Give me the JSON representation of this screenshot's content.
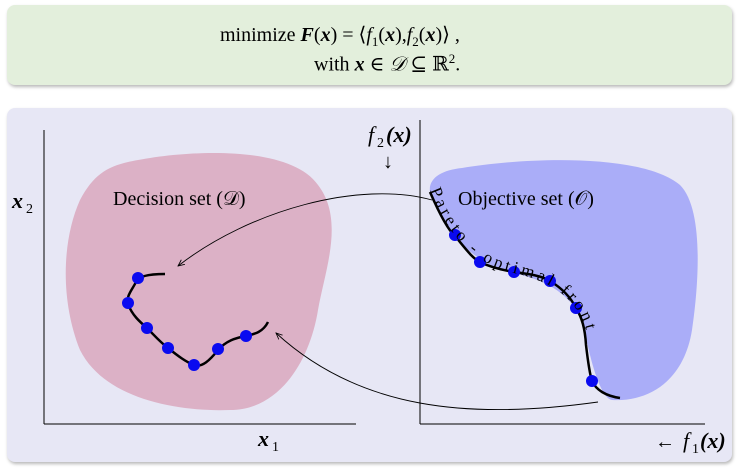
{
  "equation": {
    "line1": {
      "pre": "minimize ",
      "F": "F",
      "open": "(",
      "x": "x",
      "close": ")",
      "eq": " = ⟨",
      "f1": "f",
      "sub1": "1",
      "x1": "x",
      "mid": "),",
      "f2": "f",
      "sub2": "2",
      "x2": "x",
      "end": ")⟩ ,"
    },
    "line2": {
      "pre": "with ",
      "x": "x",
      "in": " ∈ ",
      "D": "𝒟",
      "sub": " ⊆ ℝ",
      "sup": "2",
      "end": "."
    }
  },
  "diagram": {
    "decision_label": "Decision set (𝒟)",
    "objective_label": "Objective set (𝒪)",
    "left_ylabel": "x",
    "left_ylabel_sub": "2",
    "left_xlabel": "x",
    "left_xlabel_sub": "1",
    "right_ylabel": "f",
    "right_ylabel_sub": "2",
    "right_ylabel_arg": "(x)",
    "right_ylabel_arrow": "↓",
    "right_xlabel_arrow": "← ",
    "right_xlabel": "f",
    "right_xlabel_sub": "1",
    "right_xlabel_arg": "(x)",
    "pareto_text": "Pareto - optimal front",
    "colors": {
      "decision_fill": "#dcb1c6",
      "objective_fill": "#aaadf8",
      "points": "#0a0af0"
    }
  }
}
